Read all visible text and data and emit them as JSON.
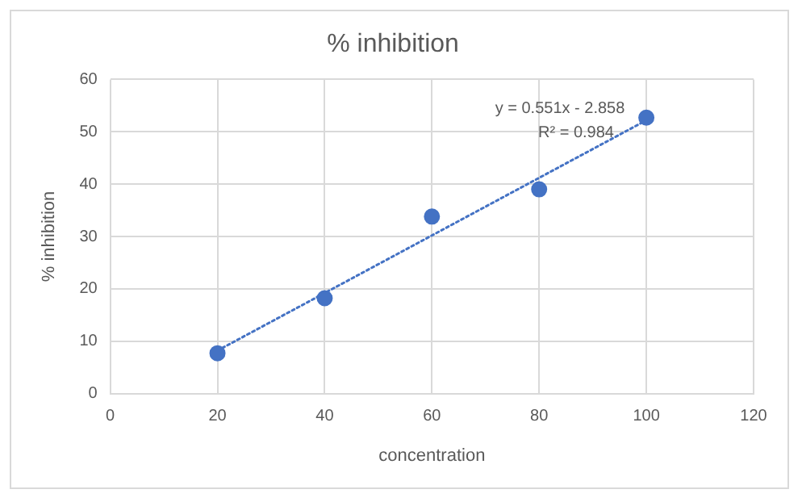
{
  "chart_data": {
    "type": "scatter",
    "title": "% inhibition",
    "xlabel": "concentration",
    "ylabel": "% inhibition",
    "x": [
      20,
      40,
      60,
      80,
      100
    ],
    "series": [
      {
        "color": "#4472c4",
        "marker": "circle",
        "values": [
          7.7,
          18.2,
          33.8,
          39,
          52.7
        ]
      },
      {
        "type": "line",
        "color": "#4472c4",
        "marker": "none",
        "line_style": "dotted",
        "x": [
          20,
          100
        ],
        "values": [
          8.2,
          52.2
        ]
      }
    ],
    "xlim": [
      0,
      120
    ],
    "xticks": [
      0,
      20,
      40,
      60,
      80,
      100,
      120
    ],
    "ylim": [
      0,
      60
    ],
    "yticks": [
      0,
      10,
      20,
      30,
      40,
      50,
      60
    ],
    "grid": true,
    "legend": false,
    "annotations": [
      "y = 0.551x - 2.858",
      "R² = 0.984"
    ]
  }
}
